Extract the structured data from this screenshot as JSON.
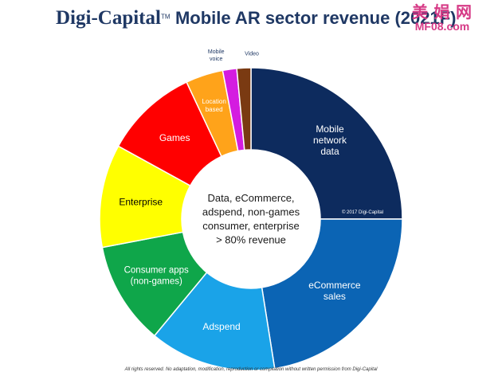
{
  "header": {
    "brand": "Digi-Capital",
    "trademark": "TM",
    "title": "Mobile AR sector revenue (2021F)"
  },
  "watermark": {
    "top": "美 娟 网",
    "bottom": "MF08.com"
  },
  "chart_data": {
    "type": "pie",
    "style": "donut",
    "center_text": [
      "Data, eCommerce,",
      "adspend, non-games",
      "consumer, enterprise",
      "> 80% revenue"
    ],
    "copyright": "© 2017 Digi-Capital",
    "legend": "none",
    "slices": [
      {
        "label": [
          "Mobile",
          "network",
          "data"
        ],
        "value": 25.0,
        "color": "#0d2b5e",
        "text_color": "#ffffff"
      },
      {
        "label": [
          "eCommerce",
          "sales"
        ],
        "value": 22.5,
        "color": "#0b64b4",
        "text_color": "#ffffff"
      },
      {
        "label": [
          "Adspend"
        ],
        "value": 13.5,
        "color": "#1aa3e8",
        "text_color": "#ffffff"
      },
      {
        "label": [
          "Consumer apps",
          "(non-games)"
        ],
        "value": 11.0,
        "color": "#0fa64a",
        "text_color": "#ffffff"
      },
      {
        "label": [
          "Enterprise"
        ],
        "value": 11.0,
        "color": "#ffff00",
        "text_color": "#000000"
      },
      {
        "label": [
          "Games"
        ],
        "value": 10.0,
        "color": "#ff0000",
        "text_color": "#ffffff"
      },
      {
        "label": [
          "Location",
          "based"
        ],
        "value": 4.0,
        "color": "#ffa31a",
        "text_color": "#ffffff"
      },
      {
        "label": [
          "Mobile",
          "voice"
        ],
        "value": 1.5,
        "color": "#d41ce0",
        "text_color": "#1f3864"
      },
      {
        "label": [
          "Video"
        ],
        "value": 1.5,
        "color": "#7a3a12",
        "text_color": "#1f3864"
      }
    ]
  },
  "footer": "All rights reserved. No adaptation, modification, reproduction or compilation without written permission from Digi-Capital"
}
